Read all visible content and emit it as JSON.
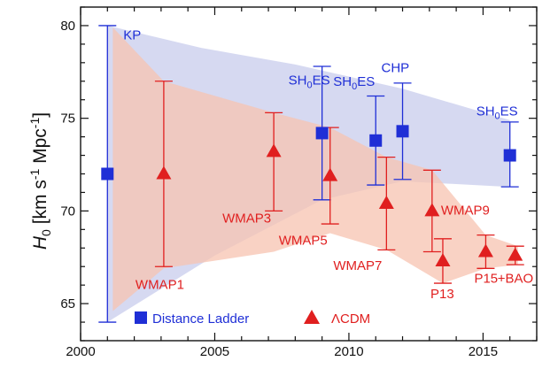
{
  "chart_data": {
    "type": "scatter",
    "title": "",
    "ylabel": {
      "symbol": "H",
      "sub": "0",
      "units": "[km s-1 Mpc-1]"
    },
    "xlim": [
      2000,
      2017
    ],
    "ylim": [
      63,
      81
    ],
    "x_ticks": [
      2000,
      2005,
      2010,
      2015
    ],
    "y_ticks": [
      65,
      70,
      75,
      80
    ],
    "grid": false,
    "legend": {
      "placement": "bottom",
      "entries": [
        {
          "name": "Distance Ladder",
          "marker": "square",
          "color": "#1f2fd6"
        },
        {
          "name": "ΛCDM",
          "marker": "triangle",
          "color": "#e01f1f"
        }
      ]
    },
    "colors": {
      "distance_ladder": "#1f2fd6",
      "lcdm": "#e01f1f",
      "band_blue": "#cfd2ee",
      "band_red": "#f7c3b0"
    },
    "series": [
      {
        "name": "Distance Ladder",
        "marker": "square",
        "color": "#1f2fd6",
        "points": [
          {
            "label": "KP",
            "x": 2001.0,
            "y": 72.0,
            "ylow": 64.0,
            "yhigh": 80.0
          },
          {
            "label": "SH0ES",
            "x": 2009.0,
            "y": 74.2,
            "ylow": 70.6,
            "yhigh": 77.8
          },
          {
            "label": "SH0ES",
            "x": 2011.0,
            "y": 73.8,
            "ylow": 71.4,
            "yhigh": 76.2
          },
          {
            "label": "CHP",
            "x": 2012.0,
            "y": 74.3,
            "ylow": 71.7,
            "yhigh": 76.9
          },
          {
            "label": "SH0ES",
            "x": 2016.0,
            "y": 73.0,
            "ylow": 71.3,
            "yhigh": 74.8
          }
        ]
      },
      {
        "name": "ΛCDM",
        "marker": "triangle",
        "color": "#e01f1f",
        "points": [
          {
            "label": "WMAP1",
            "x": 2003.1,
            "y": 72.0,
            "ylow": 67.0,
            "yhigh": 77.0
          },
          {
            "label": "WMAP3",
            "x": 2007.2,
            "y": 73.2,
            "ylow": 70.0,
            "yhigh": 75.3
          },
          {
            "label": "WMAP5",
            "x": 2009.3,
            "y": 71.9,
            "ylow": 69.3,
            "yhigh": 74.5
          },
          {
            "label": "WMAP7",
            "x": 2011.4,
            "y": 70.4,
            "ylow": 67.9,
            "yhigh": 72.9
          },
          {
            "label": "WMAP9",
            "x": 2013.1,
            "y": 70.0,
            "ylow": 67.8,
            "yhigh": 72.2
          },
          {
            "label": "P13",
            "x": 2013.5,
            "y": 67.3,
            "ylow": 66.1,
            "yhigh": 68.5
          },
          {
            "label": "P15",
            "x": 2015.1,
            "y": 67.8,
            "ylow": 66.9,
            "yhigh": 68.7
          },
          {
            "label": "+BAO",
            "x": 2016.2,
            "y": 67.6,
            "ylow": 67.1,
            "yhigh": 68.1
          }
        ]
      }
    ],
    "bands": [
      {
        "name": "distance-ladder-band",
        "color": "#cfd2ee",
        "upper": [
          [
            2001.0,
            80.0
          ],
          [
            2004.5,
            78.8
          ],
          [
            2008.0,
            77.9
          ],
          [
            2012.0,
            76.6
          ],
          [
            2016.0,
            74.9
          ]
        ],
        "lower": [
          [
            2001.0,
            64.0
          ],
          [
            2005.0,
            67.6
          ],
          [
            2009.0,
            70.6
          ],
          [
            2012.0,
            71.6
          ],
          [
            2016.0,
            71.3
          ]
        ]
      },
      {
        "name": "lcdm-band",
        "color": "#f7c3b0",
        "upper": [
          [
            2001.2,
            79.9
          ],
          [
            2003.1,
            77.0
          ],
          [
            2007.2,
            75.3
          ],
          [
            2009.3,
            74.5
          ],
          [
            2011.4,
            72.9
          ],
          [
            2013.1,
            72.2
          ],
          [
            2015.1,
            68.7
          ],
          [
            2016.3,
            68.1
          ]
        ],
        "lower": [
          [
            2016.3,
            67.1
          ],
          [
            2015.1,
            66.9
          ],
          [
            2013.5,
            66.1
          ],
          [
            2011.4,
            67.9
          ],
          [
            2009.3,
            68.8
          ],
          [
            2007.2,
            67.8
          ],
          [
            2003.1,
            66.9
          ],
          [
            2001.2,
            64.6
          ]
        ]
      }
    ]
  }
}
